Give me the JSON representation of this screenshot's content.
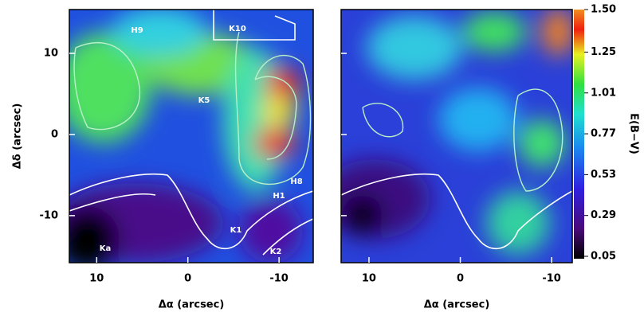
{
  "chart_data": [
    {
      "type": "image-map",
      "xlabel": "Δα (arcsec)",
      "ylabel": "Δδ (arcsec)",
      "xlim": [
        13,
        -13.75
      ],
      "ylim": [
        -15.8,
        15.4
      ],
      "xticks": [
        10,
        0,
        -10
      ],
      "yticks": [
        10,
        0,
        -10
      ],
      "annotations": [
        "H9",
        "K10",
        "K5",
        "H8",
        "H1",
        "K1",
        "K2",
        "Ka"
      ]
    },
    {
      "type": "image-map",
      "xlabel": "Δα (arcsec)",
      "xlim": [
        13.05,
        -12.26
      ],
      "ylim": [
        -15.8,
        15.4
      ],
      "xticks": [
        10,
        0,
        -10
      ],
      "yticks": [
        10,
        0,
        -10
      ],
      "colorbar": {
        "label": "E(B−V)",
        "lim": [
          0.05,
          1.5
        ],
        "ticks": [
          0.05,
          0.29,
          0.53,
          0.77,
          1.01,
          1.25,
          {
            "value": 1.5,
            "label": "1.50"
          }
        ]
      }
    }
  ]
}
